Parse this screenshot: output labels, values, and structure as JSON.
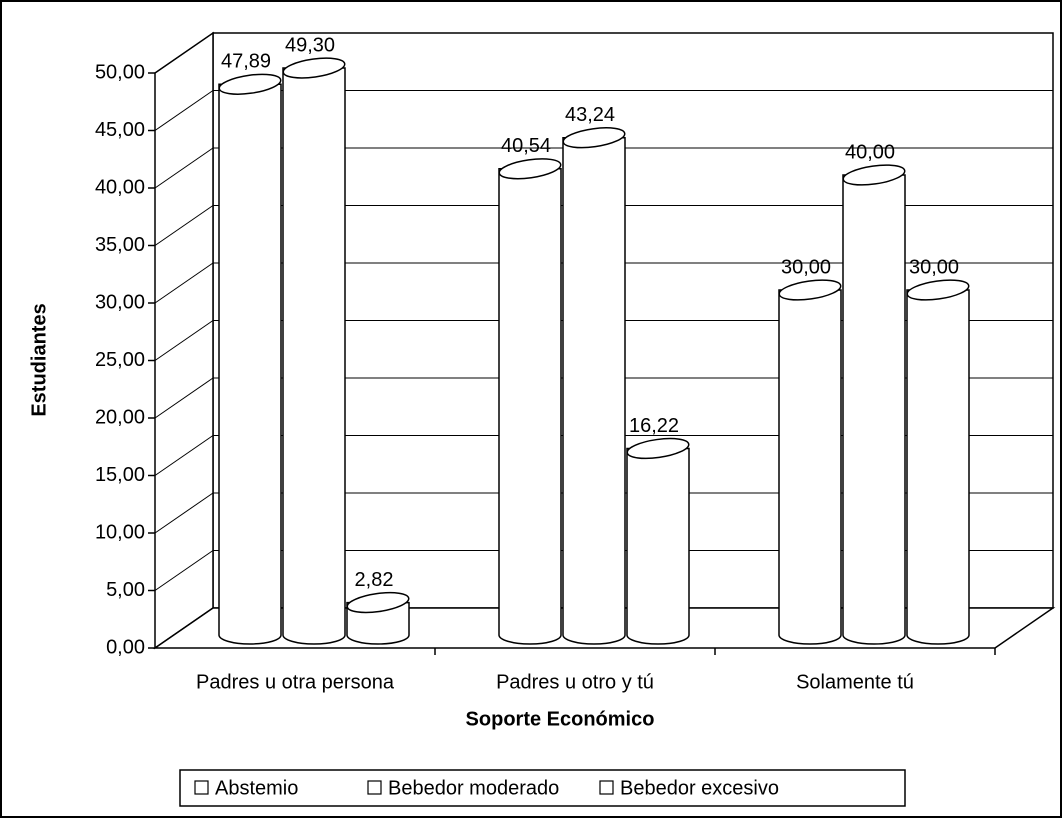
{
  "chart_data": {
    "type": "bar3d",
    "x_label": "Soporte Económico",
    "y_label": "Estudiantes",
    "categories": [
      "Padres u otra persona",
      "Padres u otro y tú",
      "Solamente tú"
    ],
    "series": [
      {
        "name": "Abstemio",
        "color": "#ffffff",
        "values": [
          47.89,
          40.54,
          30.0
        ],
        "value_labels": [
          "47,89",
          "40,54",
          "30,00"
        ]
      },
      {
        "name": "Bebedor moderado",
        "color": "#ffffff",
        "values": [
          49.3,
          43.24,
          40.0
        ],
        "value_labels": [
          "49,30",
          "43,24",
          "40,00"
        ]
      },
      {
        "name": "Bebedor excesivo",
        "color": "#ffffff",
        "values": [
          2.82,
          16.22,
          30.0
        ],
        "value_labels": [
          "2,82",
          "16,22",
          "30,00"
        ]
      }
    ],
    "ylim": [
      0,
      50
    ],
    "yticks": [
      {
        "value": 0,
        "label": "0,00"
      },
      {
        "value": 5,
        "label": "5,00"
      },
      {
        "value": 10,
        "label": "10,00"
      },
      {
        "value": 15,
        "label": "15,00"
      },
      {
        "value": 20,
        "label": "20,00"
      },
      {
        "value": 25,
        "label": "25,00"
      },
      {
        "value": 30,
        "label": "30,00"
      },
      {
        "value": 35,
        "label": "35,00"
      },
      {
        "value": 40,
        "label": "40,00"
      },
      {
        "value": 45,
        "label": "45,00"
      },
      {
        "value": 50,
        "label": "50,00"
      }
    ],
    "grid": true,
    "legend": "bottom"
  }
}
